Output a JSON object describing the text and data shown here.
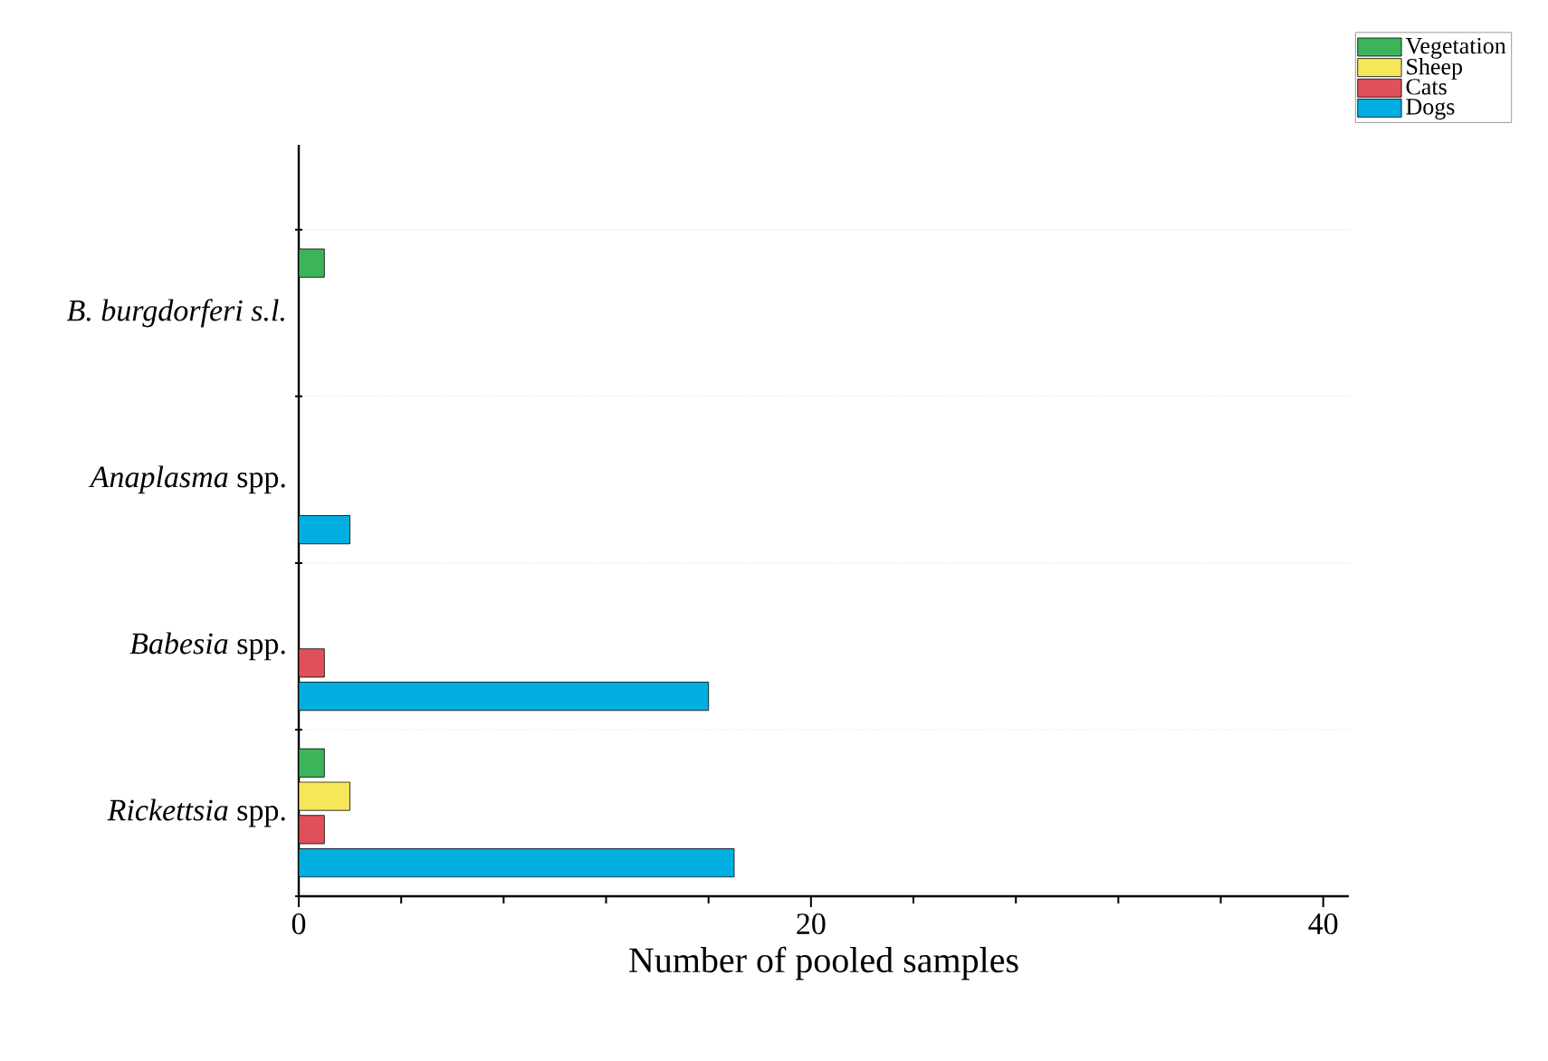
{
  "chart_data": {
    "type": "bar",
    "orientation": "horizontal",
    "categories": [
      "*B. burgdorferi s.l.*",
      "*Anaplasma* spp.",
      "*Babesia* spp.",
      "*Rickettsia* spp."
    ],
    "series": [
      {
        "name": "Vegetation",
        "color": "#3cb45a",
        "values": [
          1,
          null,
          null,
          1
        ]
      },
      {
        "name": "Sheep",
        "color": "#f5e65a",
        "values": [
          null,
          null,
          null,
          2
        ]
      },
      {
        "name": "Cats",
        "color": "#e0505a",
        "values": [
          null,
          null,
          1,
          1
        ]
      },
      {
        "name": "Dogs",
        "color": "#00aee0",
        "values": [
          null,
          2,
          16,
          17
        ]
      }
    ],
    "xlabel": "Number of pooled samples",
    "xlim": [
      0,
      41
    ],
    "xticks": [
      0,
      20,
      40
    ],
    "grid": "y",
    "legend": "top right"
  }
}
